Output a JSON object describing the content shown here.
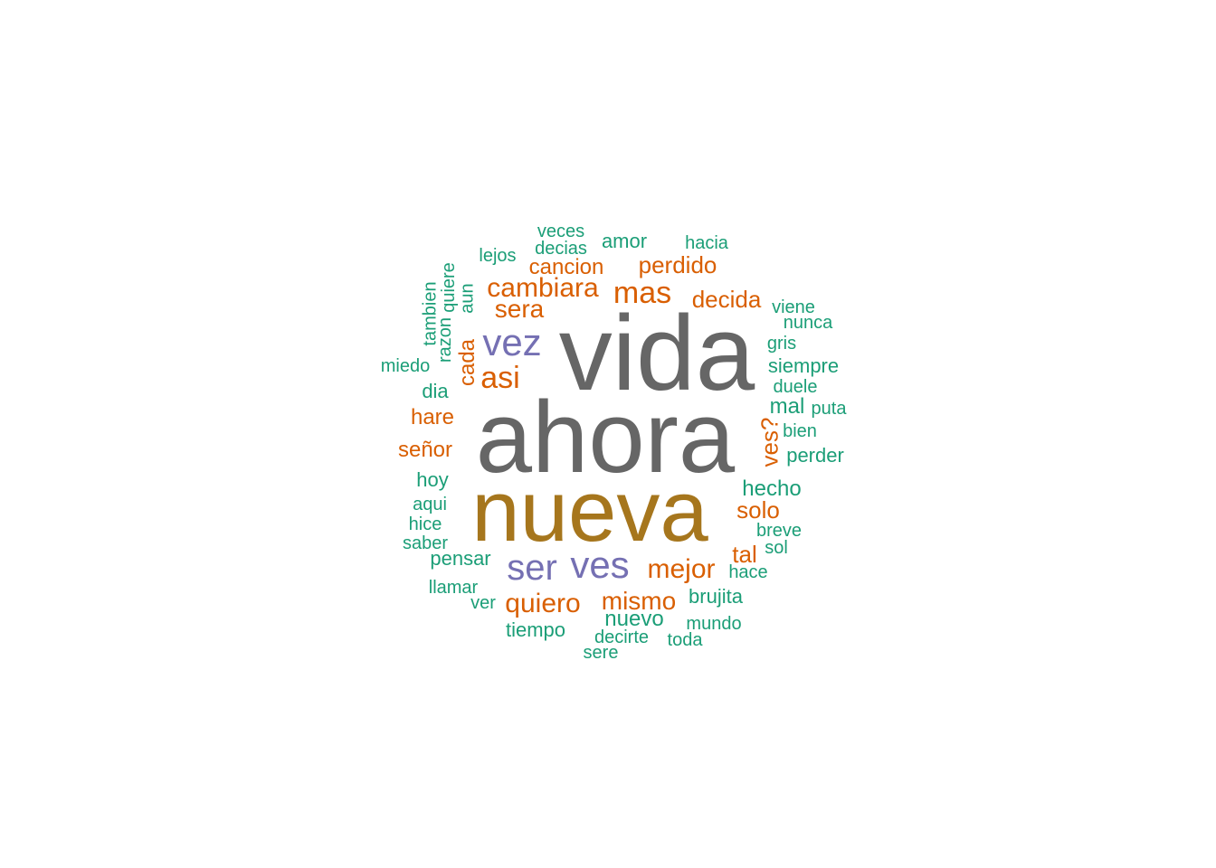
{
  "palette": {
    "gray": "#666666",
    "gold": "#A6761D",
    "purple": "#7570B3",
    "orange": "#D95F02",
    "teal": "#1B9E77"
  },
  "words": [
    {
      "text": "vida",
      "color": "gray"
    },
    {
      "text": "ahora",
      "color": "gray"
    },
    {
      "text": "nueva",
      "color": "gold"
    },
    {
      "text": "vez",
      "color": "purple"
    },
    {
      "text": "ser",
      "color": "purple"
    },
    {
      "text": "ves",
      "color": "purple"
    },
    {
      "text": "cambiara",
      "color": "orange"
    },
    {
      "text": "mas",
      "color": "orange"
    },
    {
      "text": "asi",
      "color": "orange"
    },
    {
      "text": "mejor",
      "color": "orange"
    },
    {
      "text": "quiero",
      "color": "orange"
    },
    {
      "text": "mismo",
      "color": "orange"
    },
    {
      "text": "solo",
      "color": "orange"
    },
    {
      "text": "perdido",
      "color": "orange"
    },
    {
      "text": "cancion",
      "color": "orange"
    },
    {
      "text": "sera",
      "color": "orange"
    },
    {
      "text": "decida",
      "color": "orange"
    },
    {
      "text": "hare",
      "color": "orange"
    },
    {
      "text": "señor",
      "color": "orange"
    },
    {
      "text": "cada",
      "color": "orange"
    },
    {
      "text": "ves?",
      "color": "orange"
    },
    {
      "text": "tal",
      "color": "orange"
    },
    {
      "text": "veces",
      "color": "teal"
    },
    {
      "text": "decias",
      "color": "teal"
    },
    {
      "text": "amor",
      "color": "teal"
    },
    {
      "text": "hacia",
      "color": "teal"
    },
    {
      "text": "lejos",
      "color": "teal"
    },
    {
      "text": "tambien",
      "color": "teal"
    },
    {
      "text": "quiere",
      "color": "teal"
    },
    {
      "text": "aun",
      "color": "teal"
    },
    {
      "text": "razon",
      "color": "teal"
    },
    {
      "text": "viene",
      "color": "teal"
    },
    {
      "text": "nunca",
      "color": "teal"
    },
    {
      "text": "gris",
      "color": "teal"
    },
    {
      "text": "siempre",
      "color": "teal"
    },
    {
      "text": "miedo",
      "color": "teal"
    },
    {
      "text": "dia",
      "color": "teal"
    },
    {
      "text": "duele",
      "color": "teal"
    },
    {
      "text": "mal",
      "color": "teal"
    },
    {
      "text": "puta",
      "color": "teal"
    },
    {
      "text": "bien",
      "color": "teal"
    },
    {
      "text": "perder",
      "color": "teal"
    },
    {
      "text": "hoy",
      "color": "teal"
    },
    {
      "text": "hecho",
      "color": "teal"
    },
    {
      "text": "aqui",
      "color": "teal"
    },
    {
      "text": "hice",
      "color": "teal"
    },
    {
      "text": "saber",
      "color": "teal"
    },
    {
      "text": "breve",
      "color": "teal"
    },
    {
      "text": "sol",
      "color": "teal"
    },
    {
      "text": "pensar",
      "color": "teal"
    },
    {
      "text": "hace",
      "color": "teal"
    },
    {
      "text": "llamar",
      "color": "teal"
    },
    {
      "text": "ver",
      "color": "teal"
    },
    {
      "text": "brujita",
      "color": "teal"
    },
    {
      "text": "nuevo",
      "color": "teal"
    },
    {
      "text": "mundo",
      "color": "teal"
    },
    {
      "text": "tiempo",
      "color": "teal"
    },
    {
      "text": "decirte",
      "color": "teal"
    },
    {
      "text": "toda",
      "color": "teal"
    },
    {
      "text": "sere",
      "color": "teal"
    }
  ]
}
